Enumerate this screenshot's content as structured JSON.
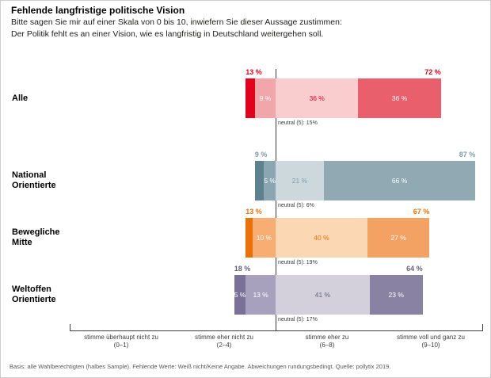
{
  "header": {
    "title": "Fehlende langfristige politische Vision",
    "subtitle_line1": "Bitte sagen Sie mir auf einer Skala von 0 bis 10, inwiefern Sie dieser Aussage zustimmen:",
    "subtitle_line2": "Der Politik fehlt es an einer Vision, wie es langfristig in Deutschland weitergehen soll."
  },
  "chart_data": {
    "type": "bar",
    "variant": "diverging_stacked_horizontal",
    "categories": [
      "stimme überhaupt nicht zu (0–1)",
      "stimme eher nicht zu (2–4)",
      "neutral (5)",
      "stimme eher zu (6–8)",
      "stimme voll und ganz zu (9–10)"
    ],
    "rows": [
      {
        "group_lines": [
          "Alle"
        ],
        "accent": "#e2001a",
        "disagree_total": {
          "value": 13,
          "label": "13 %"
        },
        "agree_total": {
          "value": 72,
          "label": "72 %"
        },
        "neutral_value": 15,
        "neutral_label": "neutral (5): 15%",
        "segments": [
          {
            "scale": "0-1",
            "value": 4,
            "label": "",
            "color": "#e2001a",
            "label_color": "#ffffff"
          },
          {
            "scale": "2-4",
            "value": 9,
            "label": "9 %",
            "color": "#f1a6aa",
            "label_color": "#ffffff"
          },
          {
            "scale": "6-8",
            "value": 36,
            "label": "36 %",
            "color": "#f9cccd",
            "label_color": "#e2001a"
          },
          {
            "scale": "9-10",
            "value": 36,
            "label": "36 %",
            "color": "#e9606c",
            "label_color": "#ffffff"
          }
        ]
      },
      {
        "group_lines": [
          "National",
          "Orientierte"
        ],
        "accent": "#7d9cab",
        "disagree_total": {
          "value": 9,
          "label": "9 %"
        },
        "agree_total": {
          "value": 87,
          "label": "87 %"
        },
        "neutral_value": 6,
        "neutral_label": "neutral (5): 6%",
        "segments": [
          {
            "scale": "0-1",
            "value": 4,
            "label": "",
            "color": "#5e818f",
            "label_color": "#ffffff"
          },
          {
            "scale": "2-4",
            "value": 5,
            "label": "5 %",
            "color": "#8ba6b1",
            "label_color": "#ffffff"
          },
          {
            "scale": "6-8",
            "value": 21,
            "label": "21 %",
            "color": "#ccd8dc",
            "label_color": "#7d9cab"
          },
          {
            "scale": "9-10",
            "value": 66,
            "label": "66 %",
            "color": "#90a9b3",
            "label_color": "#ffffff"
          }
        ]
      },
      {
        "group_lines": [
          "Bewegliche",
          "Mitte"
        ],
        "accent": "#ed7004",
        "disagree_total": {
          "value": 13,
          "label": "13 %"
        },
        "agree_total": {
          "value": 67,
          "label": "67 %"
        },
        "neutral_value": 19,
        "neutral_label": "neutral (5): 19%",
        "segments": [
          {
            "scale": "0-1",
            "value": 3,
            "label": "",
            "color": "#ed7004",
            "label_color": "#ffffff"
          },
          {
            "scale": "2-4",
            "value": 10,
            "label": "10 %",
            "color": "#f8ae73",
            "label_color": "#ffffff"
          },
          {
            "scale": "6-8",
            "value": 40,
            "label": "40 %",
            "color": "#fbd7b3",
            "label_color": "#ed7004"
          },
          {
            "scale": "9-10",
            "value": 27,
            "label": "27 %",
            "color": "#f4a263",
            "label_color": "#ffffff"
          }
        ]
      },
      {
        "group_lines": [
          "Weltoffen",
          "Orientierte"
        ],
        "accent": "#646180",
        "disagree_total": {
          "value": 18,
          "label": "18 %"
        },
        "agree_total": {
          "value": 64,
          "label": "64 %"
        },
        "neutral_value": 17,
        "neutral_label": "neutral (5): 17%",
        "segments": [
          {
            "scale": "0-1",
            "value": 5,
            "label": "5 %",
            "color": "#797197",
            "label_color": "#ffffff"
          },
          {
            "scale": "2-4",
            "value": 13,
            "label": "13 %",
            "color": "#a8a1bd",
            "label_color": "#ffffff"
          },
          {
            "scale": "6-8",
            "value": 41,
            "label": "41 %",
            "color": "#d3d0dc",
            "label_color": "#646180"
          },
          {
            "scale": "9-10",
            "value": 23,
            "label": "23 %",
            "color": "#8a82a3",
            "label_color": "#ffffff"
          }
        ]
      }
    ],
    "axis_labels": [
      {
        "line1": "stimme überhaupt nicht zu",
        "line2": "(0–1)"
      },
      {
        "line1": "stimme eher nicht zu",
        "line2": "(2–4)"
      },
      {
        "line1": "stimme eher zu",
        "line2": "(6–8)"
      },
      {
        "line1": "stimme voll und ganz zu",
        "line2": "(9–10)"
      }
    ],
    "grid": false,
    "xlim_percent": [
      -18,
      87
    ]
  },
  "colors": {
    "divider": "#3c3c3b",
    "axis": "#3c3c3b",
    "neutral_text": "#3c3c3b",
    "footer_text": "#575756"
  },
  "footer": {
    "text": "Basis: alle Wahlberechtigten (halbes Sample). Fehlende Werte: Weiß nicht/Keine Angabe. Abweichungen rundungsbedingt. Quelle: pollytix 2019."
  }
}
